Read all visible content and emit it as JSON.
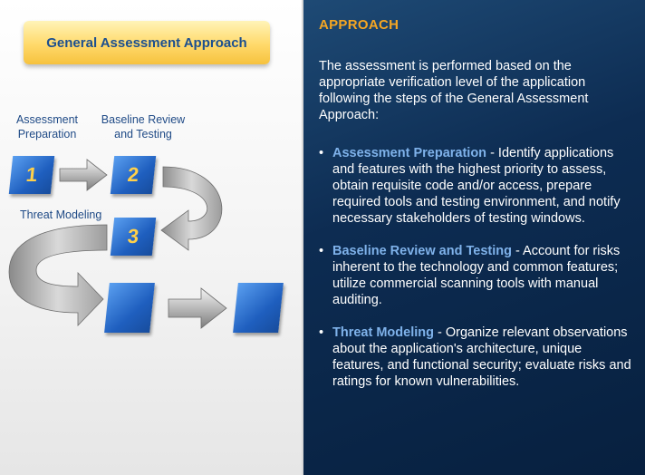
{
  "diagram": {
    "title": "General Assessment Approach",
    "steps": [
      {
        "label": "Assessment Preparation",
        "number": "1"
      },
      {
        "label": "Baseline Review and Testing",
        "number": "2"
      },
      {
        "label": "Threat Modeling",
        "number": "3"
      }
    ]
  },
  "panel": {
    "heading": "APPROACH",
    "intro": "The assessment is performed based on the appropriate verification level of the application following the steps of the General Assessment Approach:",
    "items": [
      {
        "term": "Assessment Preparation",
        "text": " - Identify applications and features with the highest priority to assess, obtain requisite code and/or access, prepare required tools and testing environment, and notify necessary stakeholders of testing windows."
      },
      {
        "term": "Baseline Review and Testing",
        "text": " - Account for risks inherent to the technology and common features; utilize commercial scanning tools with manual auditing."
      },
      {
        "term": "Threat Modeling",
        "text": " - Organize relevant observations about the application's architecture, unique features, and functional security; evaluate risks and ratings for known vulnerabilities."
      }
    ]
  },
  "colors": {
    "accent": "#f5a623",
    "term": "#7fb2ea",
    "panel_bg": "#0d2c52",
    "box_blue": "#1f5fbf",
    "number": "#ffd04a"
  }
}
